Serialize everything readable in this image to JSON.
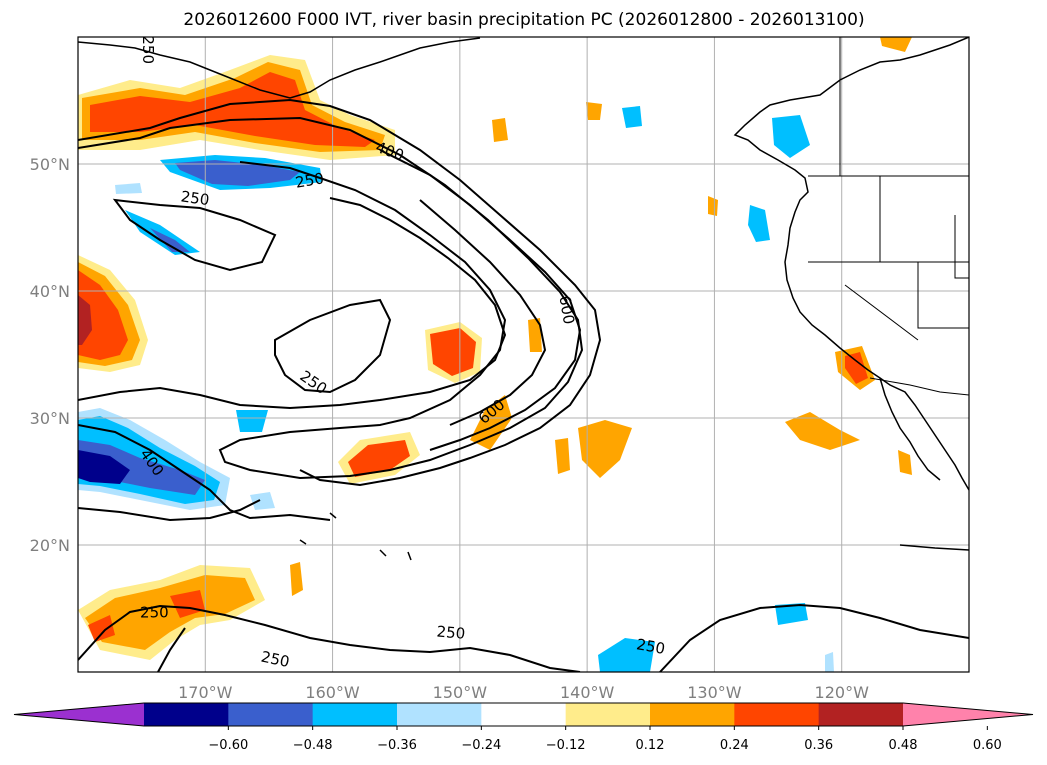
{
  "title": "2026012600 F000 IVT, river basin precipitation PC (2026012800 - 2026013100)",
  "map": {
    "lon_range": [
      -180,
      -110
    ],
    "lat_range": [
      10,
      60
    ],
    "lon_ticks": [
      {
        "lon": -170,
        "label": "170°W"
      },
      {
        "lon": -160,
        "label": "160°W"
      },
      {
        "lon": -150,
        "label": "150°W"
      },
      {
        "lon": -140,
        "label": "140°W"
      },
      {
        "lon": -130,
        "label": "130°W"
      },
      {
        "lon": -120,
        "label": "120°W"
      }
    ],
    "lat_ticks": [
      {
        "lat": 50,
        "label": "50°N"
      },
      {
        "lat": 40,
        "label": "40°N"
      },
      {
        "lat": 30,
        "label": "30°N"
      },
      {
        "lat": 20,
        "label": "20°N"
      }
    ],
    "contour_labels": [
      {
        "text": "250",
        "lon": -174.5,
        "lat": 59,
        "rot": 90
      },
      {
        "text": "400",
        "lon": -155.5,
        "lat": 51,
        "rot": 20
      },
      {
        "text": "250",
        "lon": -161.8,
        "lat": 48.7,
        "rot": -10
      },
      {
        "text": "250",
        "lon": -170.8,
        "lat": 47.3,
        "rot": 8
      },
      {
        "text": "600",
        "lon": -141.6,
        "lat": 38.5,
        "rot": 80
      },
      {
        "text": "250",
        "lon": -161.5,
        "lat": 32.8,
        "rot": 35
      },
      {
        "text": "600",
        "lon": -147.5,
        "lat": 30.5,
        "rot": -40
      },
      {
        "text": "400",
        "lon": -174.2,
        "lat": 26.5,
        "rot": 55
      },
      {
        "text": "250",
        "lon": -174.0,
        "lat": 14.7,
        "rot": 0
      },
      {
        "text": "250",
        "lon": -150.7,
        "lat": 13.1,
        "rot": 5
      },
      {
        "text": "250",
        "lon": -164.5,
        "lat": 11.0,
        "rot": 12
      },
      {
        "text": "250",
        "lon": -135.0,
        "lat": 12.0,
        "rot": 10
      }
    ]
  },
  "colorbar": {
    "colors": [
      "#9b30d0",
      "#00008b",
      "#3a5fcd",
      "#00bfff",
      "#b0e2ff",
      "#ffffff",
      "#ffec8b",
      "#ffa500",
      "#ff4500",
      "#b22222",
      "#ff82ab"
    ],
    "tick_labels": [
      "−0.60",
      "−0.48",
      "−0.36",
      "−0.24",
      "−0.12",
      "0.12",
      "0.24",
      "0.36",
      "0.48",
      "0.60"
    ]
  },
  "chart_data": {
    "type": "map",
    "title": "2026012600 F000 IVT, river basin precipitation PC (2026012800 - 2026013100)",
    "contour_levels": [
      250,
      400,
      600
    ],
    "colorbar_levels": [
      -0.6,
      -0.48,
      -0.36,
      -0.24,
      -0.12,
      0.12,
      0.24,
      0.36,
      0.48,
      0.6
    ],
    "extent": {
      "lon": [
        -180,
        -110
      ],
      "lat": [
        10,
        60
      ]
    }
  }
}
